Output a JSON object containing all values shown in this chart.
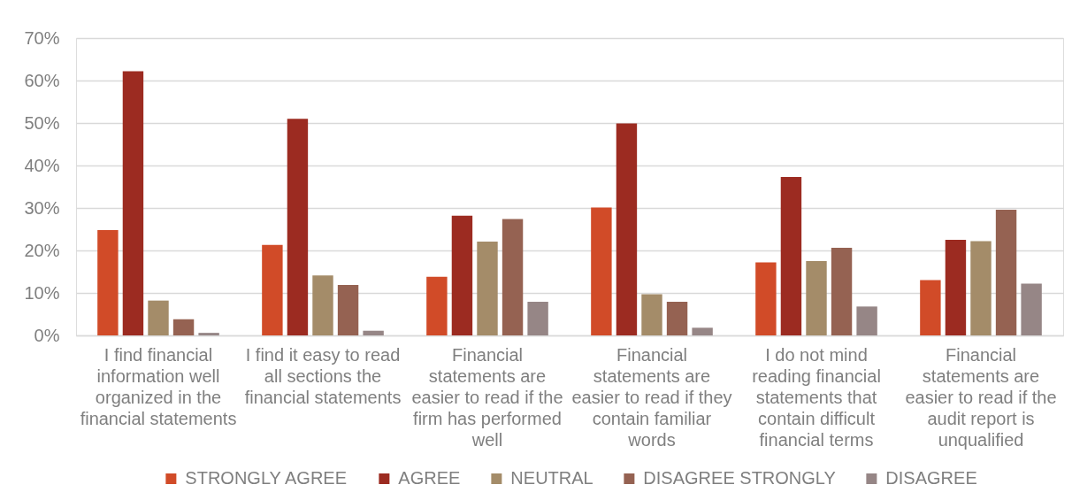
{
  "chart_data": {
    "type": "bar",
    "categories": [
      "I find financial information well organized in the financial statements",
      "I find it easy to read all sections the financial statements",
      "Financial statements are easier to read if the firm has performed well",
      "Financial statements are easier to read if they contain familiar words",
      "I do not mind reading financial statements that contain difficult financial terms",
      "Financial statements are easier to read if the audit report is unqualified"
    ],
    "series": [
      {
        "name": "STRONGLY AGREE",
        "color": "#d14b28",
        "values": [
          24.8,
          21.3,
          13.8,
          30.1,
          17.2,
          13.0
        ]
      },
      {
        "name": "AGREE",
        "color": "#9c2b21",
        "values": [
          62.2,
          51.0,
          28.2,
          49.9,
          37.3,
          22.5
        ]
      },
      {
        "name": "NEUTRAL",
        "color": "#a48c69",
        "values": [
          8.2,
          14.1,
          22.1,
          9.7,
          17.5,
          22.2
        ]
      },
      {
        "name": "DISAGREE STRONGLY",
        "color": "#956252",
        "values": [
          3.8,
          11.9,
          27.4,
          7.9,
          20.6,
          29.6
        ]
      },
      {
        "name": "DISAGREE",
        "color": "#968686",
        "values": [
          0.6,
          1.1,
          7.9,
          1.8,
          6.8,
          12.2
        ]
      }
    ],
    "ylim": [
      0,
      70
    ],
    "yticks": [
      {
        "value": 0,
        "label": "0%"
      },
      {
        "value": 10,
        "label": "10%"
      },
      {
        "value": 20,
        "label": "20%"
      },
      {
        "value": 30,
        "label": "30%"
      },
      {
        "value": 40,
        "label": "40%"
      },
      {
        "value": 50,
        "label": "50%"
      },
      {
        "value": 60,
        "label": "60%"
      },
      {
        "value": 70,
        "label": "70%"
      }
    ],
    "grid": "y",
    "legend": "bottom"
  }
}
